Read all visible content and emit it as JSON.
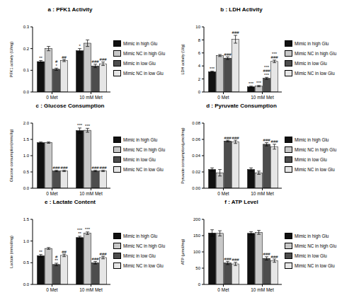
{
  "chart_data": [
    {
      "type": "bar",
      "title": "a : PFK1 Activity",
      "y_label": "PFK1 activity (U/mg)",
      "categories": [
        "0 Met",
        "10 mM Met"
      ],
      "ylim": [
        0,
        0.3
      ],
      "yticks": [
        {
          "value": 0,
          "label": "0.0"
        },
        0.1,
        0.2,
        0.3
      ],
      "grid": false,
      "legend": "right",
      "series": [
        {
          "name": "Mimic in high Glu",
          "color": "#111111",
          "values": [
            0.14,
            0.19
          ],
          "errors": [
            0.005,
            0.01
          ],
          "annotations": [
            [
              "**"
            ],
            [
              "*"
            ]
          ]
        },
        {
          "name": "Mimic NC in high Glu",
          "color": "#c8c8c8",
          "values": [
            0.2,
            0.225
          ],
          "errors": [
            0.01,
            0.015
          ],
          "annotations": [
            null,
            null
          ]
        },
        {
          "name": "Mimic in low Glu",
          "color": "#4d4d4d",
          "values": [
            0.105,
            0.12
          ],
          "errors": [
            0.005,
            0.008
          ],
          "annotations": [
            [
              "#",
              "*"
            ],
            [
              "###"
            ]
          ]
        },
        {
          "name": "Mimic NC in low Glu",
          "color": "#e6e6e6",
          "values": [
            0.145,
            0.13
          ],
          "errors": [
            0.005,
            0.008
          ],
          "annotations": [
            [
              "##"
            ],
            [
              "###"
            ]
          ]
        }
      ]
    },
    {
      "type": "bar",
      "title": "b : LDH Activity",
      "y_label": "LDH activity (U/g)",
      "categories": [
        "0 Met",
        "10 mM Met"
      ],
      "ylim": [
        0,
        10
      ],
      "yticks": [
        0,
        2,
        4,
        6,
        8,
        10
      ],
      "grid": false,
      "legend": "right",
      "series": [
        {
          "name": "Mimic in high Glu",
          "color": "#111111",
          "values": [
            3.1,
            0.8
          ],
          "errors": [
            0.1,
            0.1
          ],
          "annotations": [
            [
              "***"
            ],
            [
              "***"
            ]
          ]
        },
        {
          "name": "Mimic NC in high Glu",
          "color": "#c8c8c8",
          "values": [
            5.6,
            0.9
          ],
          "errors": [
            0.15,
            0.1
          ],
          "annotations": [
            null,
            [
              "***"
            ]
          ]
        },
        {
          "name": "Mimic in low Glu",
          "color": "#4d4d4d",
          "values": [
            5.2,
            2.1
          ],
          "errors": [
            0.2,
            0.15
          ],
          "annotations": [
            [
              "###"
            ],
            [
              "***",
              "###",
              "***"
            ]
          ]
        },
        {
          "name": "Mimic NC in low Glu",
          "color": "#e6e6e6",
          "values": [
            8.1,
            4.7
          ],
          "errors": [
            0.6,
            0.2
          ],
          "annotations": [
            [
              "###"
            ],
            [
              "***",
              "###"
            ]
          ]
        }
      ]
    },
    {
      "type": "bar",
      "title": "c : Glucose Consumption",
      "y_label": "Glucose consumption(mmol/g)",
      "categories": [
        "0 Met",
        "10 mM Met"
      ],
      "ylim": [
        0,
        2
      ],
      "yticks": [
        {
          "value": 0,
          "label": "0.0"
        },
        0.5,
        {
          "value": 1,
          "label": "1.0"
        },
        1.5,
        {
          "value": 2,
          "label": "2.0"
        }
      ],
      "grid": false,
      "legend": "right",
      "series": [
        {
          "name": "Mimic in high Glu",
          "color": "#111111",
          "values": [
            1.4,
            1.77
          ],
          "errors": [
            0.02,
            0.08
          ],
          "annotations": [
            null,
            [
              "***"
            ]
          ]
        },
        {
          "name": "Mimic NC in high Glu",
          "color": "#c8c8c8",
          "values": [
            1.4,
            1.78
          ],
          "errors": [
            0.02,
            0.06
          ],
          "annotations": [
            null,
            [
              "***"
            ]
          ]
        },
        {
          "name": "Mimic in low Glu",
          "color": "#4d4d4d",
          "values": [
            0.53,
            0.53
          ],
          "errors": [
            0.02,
            0.02
          ],
          "annotations": [
            [
              "###"
            ],
            [
              "###"
            ]
          ]
        },
        {
          "name": "Mimic NC in low Glu",
          "color": "#e6e6e6",
          "values": [
            0.53,
            0.53
          ],
          "errors": [
            0.02,
            0.02
          ],
          "annotations": [
            [
              "###"
            ],
            [
              "###"
            ]
          ]
        }
      ]
    },
    {
      "type": "bar",
      "title": "d : Pyruvate Consumption",
      "y_label": "Pyruvate consumption(μmol/mg)",
      "categories": [
        "0 Met",
        "10 mM Met"
      ],
      "ylim": [
        0,
        0.08
      ],
      "yticks": [
        {
          "value": 0,
          "label": "0.00"
        },
        0.02,
        0.04,
        0.06,
        0.08
      ],
      "grid": false,
      "legend": "right",
      "series": [
        {
          "name": "Mimic in high Glu",
          "color": "#111111",
          "values": [
            0.023,
            0.023
          ],
          "errors": [
            0.002,
            0.002
          ],
          "annotations": [
            null,
            null
          ]
        },
        {
          "name": "Mimic NC in high Glu",
          "color": "#c8c8c8",
          "values": [
            0.019,
            0.019
          ],
          "errors": [
            0.004,
            0.002
          ],
          "annotations": [
            null,
            null
          ]
        },
        {
          "name": "Mimic in low Glu",
          "color": "#4d4d4d",
          "values": [
            0.058,
            0.054
          ],
          "errors": [
            0.001,
            0.002
          ],
          "annotations": [
            [
              "###"
            ],
            [
              "###"
            ]
          ]
        },
        {
          "name": "Mimic NC in low Glu",
          "color": "#e6e6e6",
          "values": [
            0.057,
            0.051
          ],
          "errors": [
            0.002,
            0.003
          ],
          "annotations": [
            [
              "###"
            ],
            [
              "###"
            ]
          ]
        }
      ]
    },
    {
      "type": "bar",
      "title": "e : Lactate Content",
      "y_label": "Lactate (mmol/mg)",
      "categories": [
        "0 Met",
        "10 mM Met"
      ],
      "ylim": [
        0,
        1.5
      ],
      "yticks": [
        {
          "value": 0,
          "label": "0.0"
        },
        0.5,
        {
          "value": 1,
          "label": "1.0"
        },
        1.5
      ],
      "grid": false,
      "legend": "right",
      "series": [
        {
          "name": "Mimic in high Glu",
          "color": "#111111",
          "values": [
            0.66,
            1.08
          ],
          "errors": [
            0.03,
            0.03
          ],
          "annotations": [
            [
              "**"
            ],
            [
              "***",
              "**"
            ]
          ]
        },
        {
          "name": "Mimic NC in high Glu",
          "color": "#c8c8c8",
          "values": [
            0.83,
            1.18
          ],
          "errors": [
            0.02,
            0.03
          ],
          "annotations": [
            null,
            [
              "***"
            ]
          ]
        },
        {
          "name": "Mimic in low Glu",
          "color": "#4d4d4d",
          "values": [
            0.46,
            0.5
          ],
          "errors": [
            0.03,
            0.03
          ],
          "annotations": [
            [
              "#",
              "**"
            ],
            [
              "###"
            ]
          ]
        },
        {
          "name": "Mimic NC in low Glu",
          "color": "#e6e6e6",
          "values": [
            0.67,
            0.62
          ],
          "errors": [
            0.03,
            0.03
          ],
          "annotations": [
            [
              "##"
            ],
            [
              "###"
            ]
          ]
        }
      ]
    },
    {
      "type": "bar",
      "title": "f : ATP Level",
      "y_label": "ATP (μmol/mg)",
      "categories": [
        "0 Met",
        "10 mM Met"
      ],
      "ylim": [
        0,
        200
      ],
      "yticks": [
        0,
        50,
        100,
        150,
        200
      ],
      "grid": false,
      "legend": "right",
      "series": [
        {
          "name": "Mimic in high Glu",
          "color": "#111111",
          "values": [
            158,
            157
          ],
          "errors": [
            10,
            5
          ],
          "annotations": [
            null,
            null
          ]
        },
        {
          "name": "Mimic NC in high Glu",
          "color": "#c8c8c8",
          "values": [
            157,
            160
          ],
          "errors": [
            8,
            6
          ],
          "annotations": [
            null,
            null
          ]
        },
        {
          "name": "Mimic in low Glu",
          "color": "#4d4d4d",
          "values": [
            66,
            80
          ],
          "errors": [
            5,
            5
          ],
          "annotations": [
            [
              "###"
            ],
            [
              "###"
            ]
          ]
        },
        {
          "name": "Mimic NC in low Glu",
          "color": "#e6e6e6",
          "values": [
            63,
            73
          ],
          "errors": [
            5,
            5
          ],
          "annotations": [
            [
              "###"
            ],
            [
              "###"
            ]
          ]
        }
      ]
    }
  ]
}
